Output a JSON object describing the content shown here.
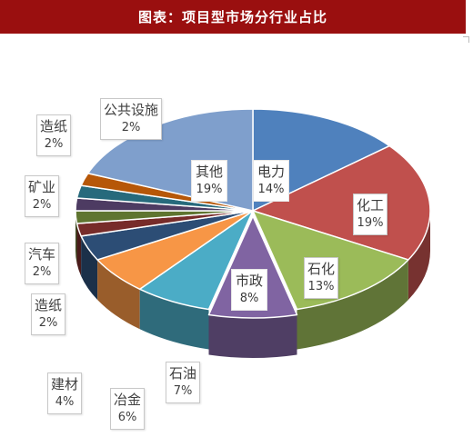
{
  "header": {
    "title": "图表：项目型市场分行业占比"
  },
  "chart_data": {
    "type": "pie",
    "style": "3d-exploded",
    "legend": "none",
    "slices": [
      {
        "name": "电力",
        "value": 14,
        "label": "14%",
        "color": "#4f81bd"
      },
      {
        "name": "化工",
        "value": 19,
        "label": "19%",
        "color": "#c0504d"
      },
      {
        "name": "石化",
        "value": 13,
        "label": "13%",
        "color": "#9bbb59"
      },
      {
        "name": "市政",
        "value": 8,
        "label": "8%",
        "color": "#8064a2"
      },
      {
        "name": "石油",
        "value": 7,
        "label": "7%",
        "color": "#4bacc6"
      },
      {
        "name": "冶金",
        "value": 6,
        "label": "6%",
        "color": "#f79646"
      },
      {
        "name": "建材",
        "value": 4,
        "label": "4%",
        "color": "#2c4d75"
      },
      {
        "name": "造纸",
        "value": 2,
        "label": "2%",
        "color": "#772c2a"
      },
      {
        "name": "汽车",
        "value": 2,
        "label": "2%",
        "color": "#5f7530"
      },
      {
        "name": "矿业",
        "value": 2,
        "label": "2%",
        "color": "#4d3b62"
      },
      {
        "name": "造纸",
        "value": 2,
        "label": "2%",
        "color": "#276a7c"
      },
      {
        "name": "公共设施",
        "value": 2,
        "label": "2%",
        "color": "#b65708"
      },
      {
        "name": "其他",
        "value": 19,
        "label": "19%",
        "color": "#7f9fcc"
      }
    ]
  }
}
